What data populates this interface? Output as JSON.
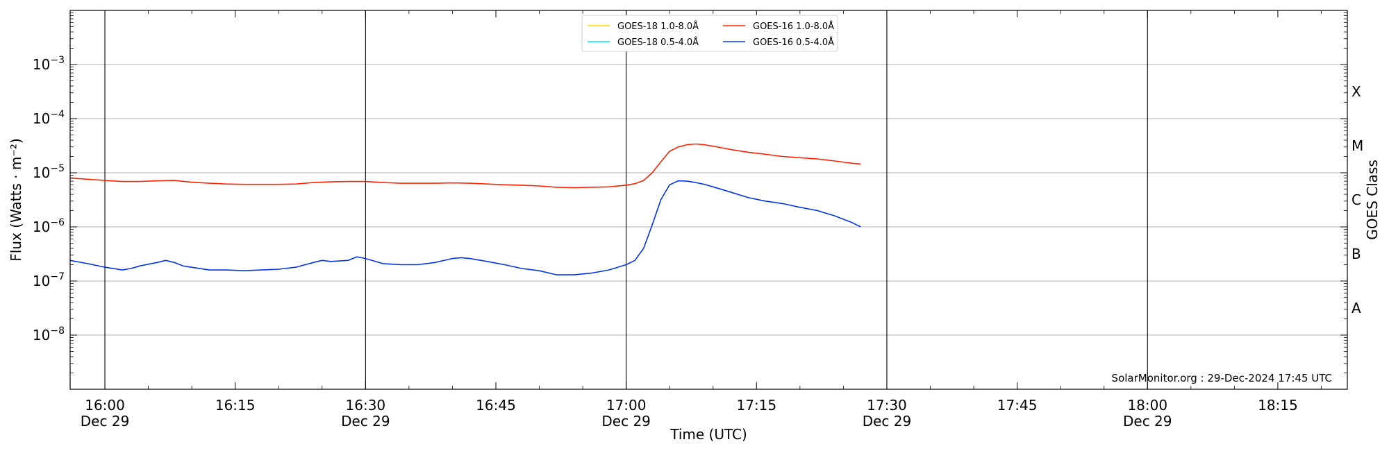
{
  "chart_data": {
    "type": "line",
    "title": "",
    "xlabel": "Time (UTC)",
    "ylabel": "Flux (Watts · m⁻²)",
    "y2label": "GOES Class",
    "yscale": "log",
    "xlim": [
      "15:56",
      "18:23"
    ],
    "ylim": [
      1e-09,
      0.01
    ],
    "x_ticks": [
      {
        "time": "16:00",
        "label": "16:00",
        "date": "Dec 29"
      },
      {
        "time": "16:15",
        "label": "16:15",
        "date": ""
      },
      {
        "time": "16:30",
        "label": "16:30",
        "date": "Dec 29"
      },
      {
        "time": "16:45",
        "label": "16:45",
        "date": ""
      },
      {
        "time": "17:00",
        "label": "17:00",
        "date": "Dec 29"
      },
      {
        "time": "17:15",
        "label": "17:15",
        "date": ""
      },
      {
        "time": "17:30",
        "label": "17:30",
        "date": "Dec 29"
      },
      {
        "time": "17:45",
        "label": "17:45",
        "date": ""
      },
      {
        "time": "18:00",
        "label": "18:00",
        "date": "Dec 29"
      },
      {
        "time": "18:15",
        "label": "18:15",
        "date": ""
      }
    ],
    "vertical_lines": [
      "16:00",
      "16:30",
      "17:00",
      "17:30",
      "18:00"
    ],
    "y_ticks": [
      {
        "value": 1e-08,
        "base": "10",
        "exp": "−8"
      },
      {
        "value": 1e-07,
        "base": "10",
        "exp": "−7"
      },
      {
        "value": 1e-06,
        "base": "10",
        "exp": "−6"
      },
      {
        "value": 1e-05,
        "base": "10",
        "exp": "−5"
      },
      {
        "value": 0.0001,
        "base": "10",
        "exp": "−4"
      },
      {
        "value": 0.001,
        "base": "10",
        "exp": "−3"
      }
    ],
    "goes_classes": [
      {
        "label": "A",
        "value": 3.162e-08
      },
      {
        "label": "B",
        "value": 3.162e-07
      },
      {
        "label": "C",
        "value": 3.162e-06
      },
      {
        "label": "M",
        "value": 3.162e-05
      },
      {
        "label": "X",
        "value": 0.0003162
      }
    ],
    "grid": "horizontal",
    "legend_position": "top-center",
    "legend": [
      {
        "name": "GOES-18 1.0-8.0Å",
        "color": "#ffd700"
      },
      {
        "name": "GOES-18 0.5-4.0Å",
        "color": "#00e5ee"
      },
      {
        "name": "GOES-16 1.0-8.0Å",
        "color": "#ff2200"
      },
      {
        "name": "GOES-16 0.5-4.0Å",
        "color": "#0033ee"
      }
    ],
    "series": [
      {
        "name": "GOES-16 1.0-8.0Å",
        "color": "#ff2200",
        "points": [
          [
            "15:56",
            8e-06
          ],
          [
            "15:58",
            7.6e-06
          ],
          [
            "16:00",
            7.2e-06
          ],
          [
            "16:02",
            6.9e-06
          ],
          [
            "16:04",
            6.9e-06
          ],
          [
            "16:06",
            7.1e-06
          ],
          [
            "16:08",
            7.2e-06
          ],
          [
            "16:10",
            6.7e-06
          ],
          [
            "16:12",
            6.4e-06
          ],
          [
            "16:14",
            6.2e-06
          ],
          [
            "16:16",
            6.1e-06
          ],
          [
            "16:18",
            6.1e-06
          ],
          [
            "16:20",
            6.1e-06
          ],
          [
            "16:22",
            6.2e-06
          ],
          [
            "16:24",
            6.6e-06
          ],
          [
            "16:26",
            6.8e-06
          ],
          [
            "16:28",
            6.9e-06
          ],
          [
            "16:30",
            6.9e-06
          ],
          [
            "16:32",
            6.6e-06
          ],
          [
            "16:34",
            6.4e-06
          ],
          [
            "16:36",
            6.4e-06
          ],
          [
            "16:38",
            6.4e-06
          ],
          [
            "16:40",
            6.5e-06
          ],
          [
            "16:42",
            6.4e-06
          ],
          [
            "16:44",
            6.2e-06
          ],
          [
            "16:46",
            6e-06
          ],
          [
            "16:48",
            5.9e-06
          ],
          [
            "16:50",
            5.7e-06
          ],
          [
            "16:52",
            5.4e-06
          ],
          [
            "16:54",
            5.3e-06
          ],
          [
            "16:56",
            5.4e-06
          ],
          [
            "16:58",
            5.5e-06
          ],
          [
            "17:00",
            5.9e-06
          ],
          [
            "17:01",
            6.3e-06
          ],
          [
            "17:02",
            7.2e-06
          ],
          [
            "17:03",
            1e-05
          ],
          [
            "17:04",
            1.6e-05
          ],
          [
            "17:05",
            2.5e-05
          ],
          [
            "17:06",
            3e-05
          ],
          [
            "17:07",
            3.3e-05
          ],
          [
            "17:08",
            3.4e-05
          ],
          [
            "17:09",
            3.3e-05
          ],
          [
            "17:10",
            3.1e-05
          ],
          [
            "17:12",
            2.7e-05
          ],
          [
            "17:14",
            2.4e-05
          ],
          [
            "17:16",
            2.2e-05
          ],
          [
            "17:18",
            2e-05
          ],
          [
            "17:20",
            1.9e-05
          ],
          [
            "17:22",
            1.8e-05
          ],
          [
            "17:24",
            1.65e-05
          ],
          [
            "17:26",
            1.5e-05
          ],
          [
            "17:27",
            1.45e-05
          ]
        ]
      },
      {
        "name": "GOES-16 0.5-4.0Å",
        "color": "#0033ee",
        "points": [
          [
            "15:56",
            2.4e-07
          ],
          [
            "15:58",
            2.1e-07
          ],
          [
            "16:00",
            1.8e-07
          ],
          [
            "16:02",
            1.6e-07
          ],
          [
            "16:03",
            1.7e-07
          ],
          [
            "16:04",
            1.9e-07
          ],
          [
            "16:06",
            2.2e-07
          ],
          [
            "16:07",
            2.4e-07
          ],
          [
            "16:08",
            2.2e-07
          ],
          [
            "16:09",
            1.9e-07
          ],
          [
            "16:12",
            1.6e-07
          ],
          [
            "16:14",
            1.6e-07
          ],
          [
            "16:16",
            1.55e-07
          ],
          [
            "16:18",
            1.6e-07
          ],
          [
            "16:20",
            1.65e-07
          ],
          [
            "16:22",
            1.8e-07
          ],
          [
            "16:24",
            2.2e-07
          ],
          [
            "16:25",
            2.4e-07
          ],
          [
            "16:26",
            2.3e-07
          ],
          [
            "16:28",
            2.4e-07
          ],
          [
            "16:29",
            2.8e-07
          ],
          [
            "16:30",
            2.6e-07
          ],
          [
            "16:32",
            2.1e-07
          ],
          [
            "16:34",
            2e-07
          ],
          [
            "16:36",
            2e-07
          ],
          [
            "16:38",
            2.2e-07
          ],
          [
            "16:40",
            2.6e-07
          ],
          [
            "16:41",
            2.7e-07
          ],
          [
            "16:42",
            2.6e-07
          ],
          [
            "16:44",
            2.3e-07
          ],
          [
            "16:46",
            2e-07
          ],
          [
            "16:48",
            1.7e-07
          ],
          [
            "16:50",
            1.55e-07
          ],
          [
            "16:52",
            1.3e-07
          ],
          [
            "16:54",
            1.3e-07
          ],
          [
            "16:56",
            1.4e-07
          ],
          [
            "16:58",
            1.6e-07
          ],
          [
            "17:00",
            2e-07
          ],
          [
            "17:01",
            2.4e-07
          ],
          [
            "17:02",
            4e-07
          ],
          [
            "17:03",
            1.1e-06
          ],
          [
            "17:04",
            3.2e-06
          ],
          [
            "17:05",
            6e-06
          ],
          [
            "17:06",
            7.1e-06
          ],
          [
            "17:07",
            7e-06
          ],
          [
            "17:08",
            6.6e-06
          ],
          [
            "17:09",
            6.1e-06
          ],
          [
            "17:10",
            5.5e-06
          ],
          [
            "17:12",
            4.4e-06
          ],
          [
            "17:14",
            3.5e-06
          ],
          [
            "17:16",
            3e-06
          ],
          [
            "17:18",
            2.7e-06
          ],
          [
            "17:20",
            2.3e-06
          ],
          [
            "17:22",
            2e-06
          ],
          [
            "17:24",
            1.6e-06
          ],
          [
            "17:26",
            1.2e-06
          ],
          [
            "17:27",
            1e-06
          ]
        ]
      }
    ],
    "annotation": "SolarMonitor.org : 29-Dec-2024 17:45 UTC"
  }
}
